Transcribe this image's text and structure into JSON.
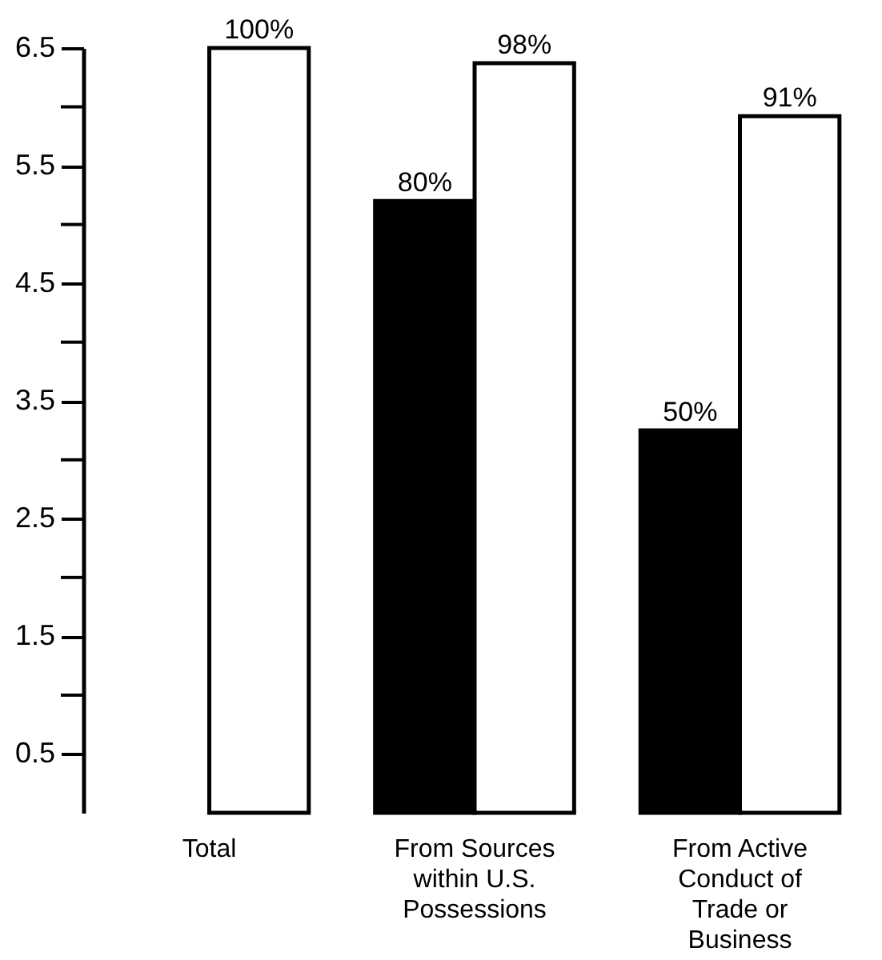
{
  "chart_data": {
    "type": "bar",
    "categories": [
      "Total",
      "From Sources\nwithin U.S.\nPossessions",
      "From Active\nConduct of\nTrade or\nBusiness"
    ],
    "series": [
      {
        "color": "#000000",
        "values": [
          null,
          5.2,
          3.25
        ]
      },
      {
        "color": "#ffffff",
        "values": [
          6.5,
          6.37,
          5.92
        ]
      }
    ],
    "annotations": [
      {
        "text": "100%",
        "x": "Total",
        "y": 6.5
      },
      {
        "text": "80%",
        "x": "From Sources\nwithin U.S.\nPossessions",
        "y": 5.2
      },
      {
        "text": "98%",
        "x": "From Sources\nwithin U.S.\nPossessions",
        "y": 6.37
      },
      {
        "text": "50%",
        "x": "From Active\nConduct of\nTrade or\nBusiness",
        "y": 3.25
      },
      {
        "text": "91%",
        "x": "From Active\nConduct of\nTrade or\nBusiness",
        "y": 5.92
      }
    ],
    "ylim": [
      0,
      6.5
    ],
    "yticks": [
      0.5,
      {
        "value": 1,
        "label": null
      },
      1.5,
      {
        "value": 2,
        "label": null
      },
      2.5,
      {
        "value": 3,
        "label": null
      },
      3.5,
      {
        "value": 4,
        "label": null
      },
      4.5,
      {
        "value": 5,
        "label": null
      },
      5.5,
      {
        "value": 6,
        "label": null
      },
      6.5
    ],
    "grid": false,
    "legend": false
  }
}
